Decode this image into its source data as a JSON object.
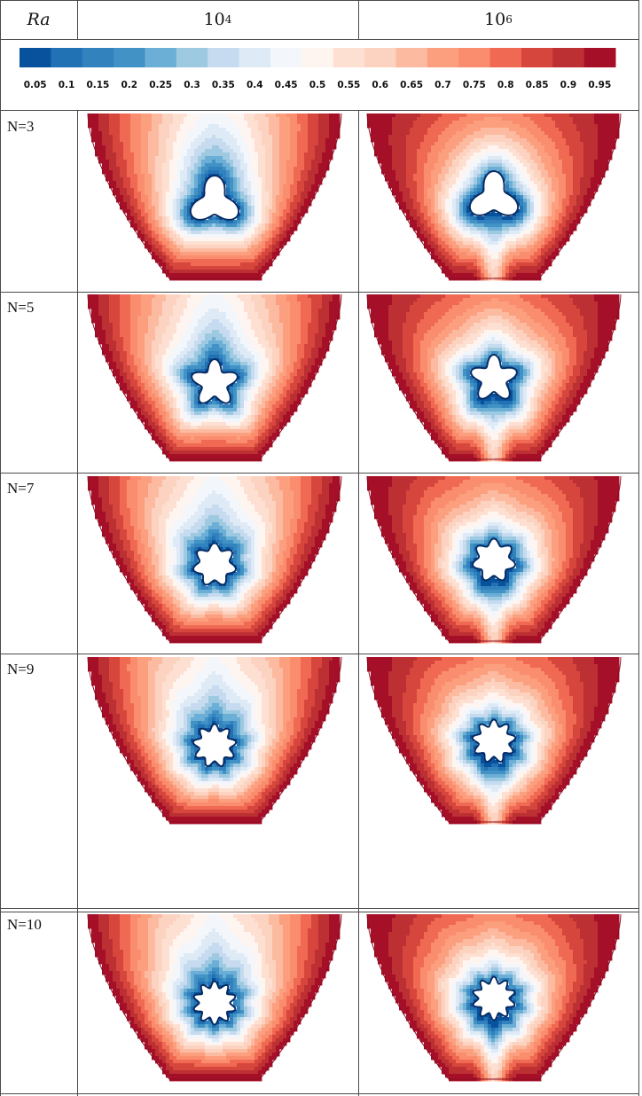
{
  "header": {
    "ra_label": "Ra",
    "columns": [
      {
        "base": "10",
        "exponent": "4"
      },
      {
        "base": "10",
        "exponent": "6"
      }
    ]
  },
  "colorbar": {
    "colors": [
      "#08519c",
      "#2171b5",
      "#3182bd",
      "#4292c6",
      "#6baed6",
      "#9ecae1",
      "#c6dbef",
      "#deebf7",
      "#f3f6fb",
      "#fff5f0",
      "#fee0d2",
      "#fcd3c0",
      "#fcbba1",
      "#fc9f7e",
      "#f98d6d",
      "#f06a53",
      "#d7463c",
      "#bc2f33",
      "#a50f28"
    ],
    "ticks": [
      "0.05",
      "0.1",
      "0.15",
      "0.2",
      "0.25",
      "0.3",
      "0.35",
      "0.4",
      "0.45",
      "0.5",
      "0.55",
      "0.6",
      "0.65",
      "0.7",
      "0.75",
      "0.8",
      "0.85",
      "0.9",
      "0.95"
    ]
  },
  "rows": [
    {
      "label": "N=3",
      "lobes": 3
    },
    {
      "label": "N=5",
      "lobes": 5
    },
    {
      "label": "N=7",
      "lobes": 7
    },
    {
      "label": "N=9",
      "lobes": 9
    },
    {
      "label": "N=10",
      "lobes": 10
    }
  ]
}
